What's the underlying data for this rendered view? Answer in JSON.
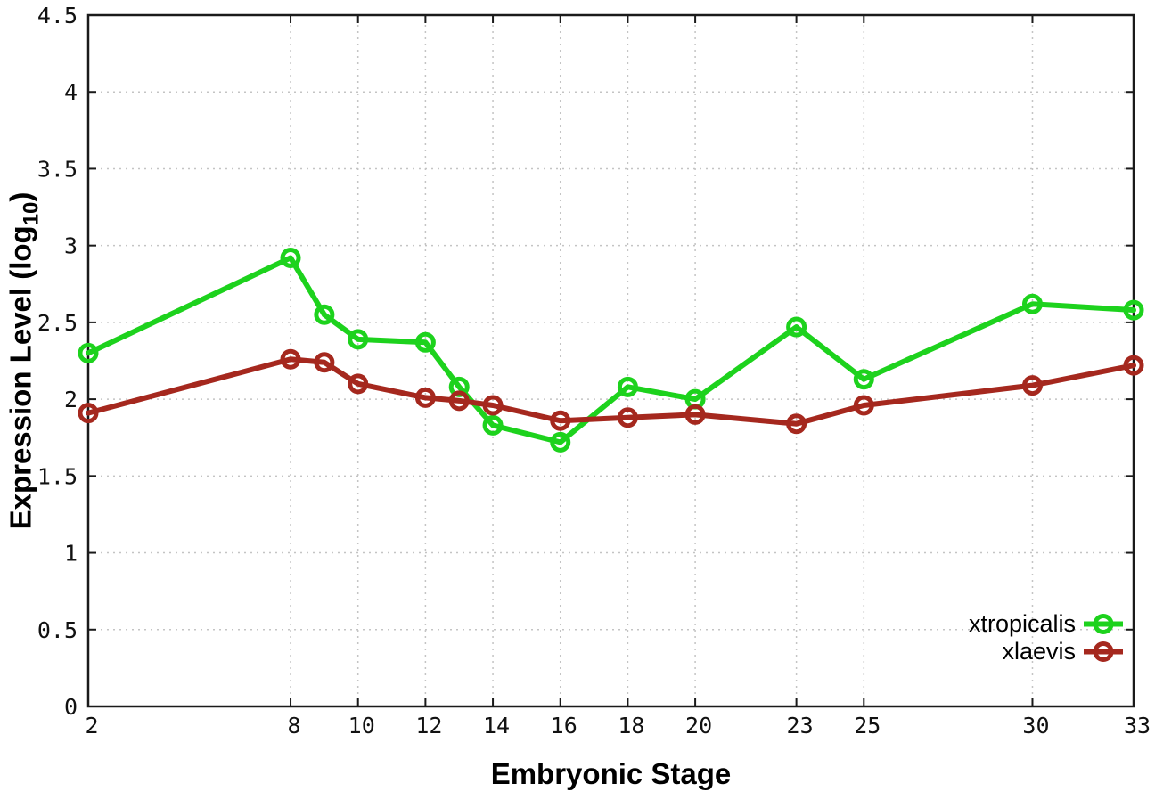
{
  "chart_data": {
    "type": "line",
    "title": "",
    "xlabel": "Embryonic Stage",
    "ylabel": "Expression Level (log10)",
    "ylabel_parts": {
      "main": "Expression Level (log",
      "sub": "10",
      "close": ")"
    },
    "xlim": [
      2,
      33
    ],
    "ylim": [
      0,
      4.5
    ],
    "grid": true,
    "legend_position": "bottom-right",
    "x_ticks": [
      2,
      8,
      10,
      12,
      14,
      16,
      18,
      20,
      23,
      25,
      30,
      33
    ],
    "x_tick_labels": [
      "2",
      "8",
      "10",
      "12",
      "14",
      "16",
      "18",
      "20",
      "23",
      "25",
      "30",
      "33"
    ],
    "y_ticks": [
      0,
      0.5,
      1,
      1.5,
      2,
      2.5,
      3,
      3.5,
      4,
      4.5
    ],
    "y_tick_labels": [
      "0",
      "0.5",
      "1",
      "1.5",
      "2",
      "2.5",
      "3",
      "3.5",
      "4",
      "4.5"
    ],
    "x": [
      2,
      8,
      9,
      10,
      12,
      13,
      14,
      16,
      18,
      20,
      23,
      25,
      30,
      33
    ],
    "series": [
      {
        "name": "xtropicalis",
        "color": "#1dd21d",
        "values": [
          2.3,
          2.92,
          2.55,
          2.39,
          2.37,
          2.08,
          1.83,
          1.72,
          2.08,
          2.0,
          2.47,
          2.13,
          2.62,
          2.58
        ]
      },
      {
        "name": "xlaevis",
        "color": "#a5281e",
        "values": [
          1.91,
          2.26,
          2.24,
          2.1,
          2.01,
          1.99,
          1.96,
          1.86,
          1.88,
          1.9,
          1.84,
          1.96,
          2.09,
          2.22
        ]
      }
    ],
    "colors": {
      "grid": "#c4c4c4",
      "border": "#1a1a1a",
      "tick_text": "#111111"
    }
  }
}
